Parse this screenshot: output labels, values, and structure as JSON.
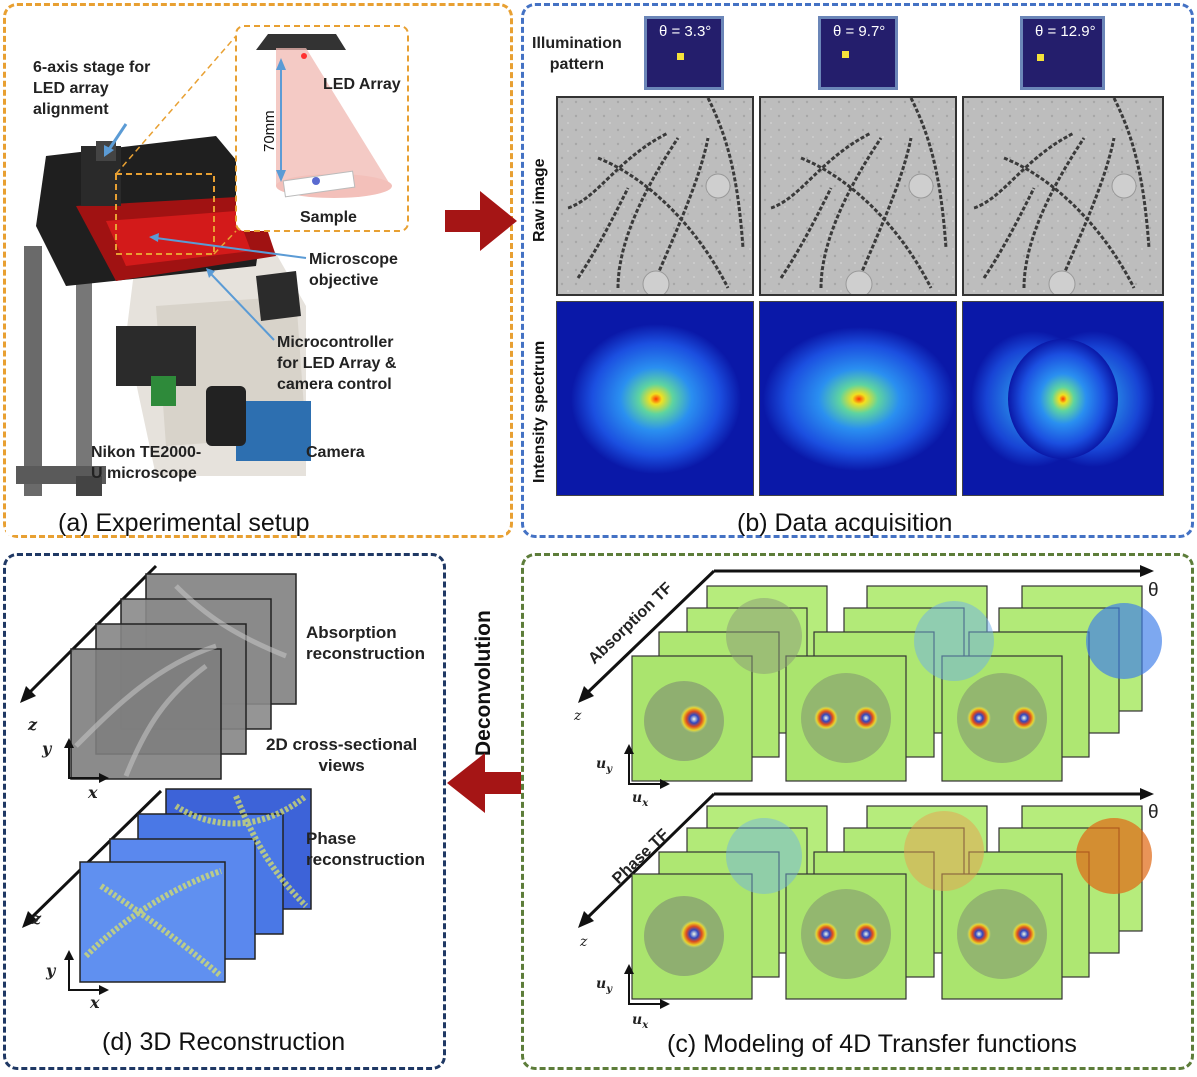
{
  "panels": {
    "a": {
      "caption": "(a)  Experimental setup",
      "border_color": "#e8a032"
    },
    "b": {
      "caption": "(b) Data acquisition",
      "border_color": "#4472c4"
    },
    "c": {
      "caption": "(c) Modeling of 4D Transfer functions",
      "border_color": "#5d7d3a"
    },
    "d": {
      "caption": "(d) 3D Reconstruction",
      "border_color": "#1f3864"
    }
  },
  "setup": {
    "stage_label_1": "6-axis stage for",
    "stage_label_2": "LED array",
    "stage_label_3": "alignment",
    "led_array": "LED Array",
    "distance": "70mm",
    "sample": "Sample",
    "objective_1": "Microscope",
    "objective_2": "objective",
    "micro_1": "Microcontroller",
    "micro_2": "for LED Array &",
    "micro_3": "camera control",
    "nikon_1": "Nikon TE2000-",
    "nikon_2": "U microscope",
    "camera": "Camera"
  },
  "acquisition": {
    "illum_1": "Illumination",
    "illum_2": "pattern",
    "raw_label": "Raw image",
    "spectrum_label": "Intensity spectrum",
    "angles": [
      "θ = 3.3°",
      "θ = 9.7°",
      "θ = 12.9°"
    ]
  },
  "modeling": {
    "absorption_tf": "Absorption TF",
    "phase_tf": "Phase TF",
    "theta": "θ",
    "z": "z",
    "uy": "u",
    "uy_sub": "y",
    "ux": "u",
    "ux_sub": "x"
  },
  "deconvolution": "Deconvolution",
  "reconstruction": {
    "absorption_1": "Absorption",
    "absorption_2": "reconstruction",
    "cross_1": "2D cross-sectional",
    "cross_2": "views",
    "phase_1": "Phase",
    "phase_2": "reconstruction",
    "z": "z",
    "y": "y",
    "x": "x"
  },
  "colors": {
    "arrow": "#a51515"
  }
}
